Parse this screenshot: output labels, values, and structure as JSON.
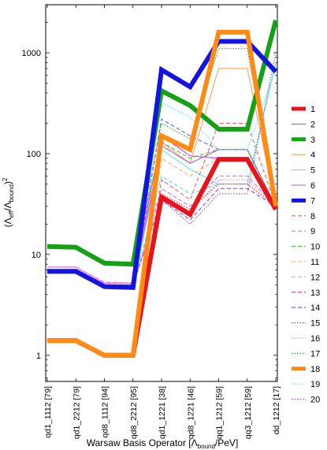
{
  "chart_data": {
    "type": "line",
    "xlabel": "Warsaw Basis Operator [Λbound/PeV]",
    "xlabel_parts": [
      "Warsaw Basis Operator [Λ",
      "bound",
      "/PeV]"
    ],
    "ylabel_parts": [
      "(Λ",
      "eff",
      "/Λ",
      "bound",
      ")",
      "2"
    ],
    "yscale": "log",
    "ylim": [
      0.55,
      3000
    ],
    "yticks": [
      {
        "v": 1,
        "label": "1"
      },
      {
        "v": 10,
        "label": "10"
      },
      {
        "v": 100,
        "label": "100"
      },
      {
        "v": 1000,
        "label": "1000"
      }
    ],
    "categories": [
      "qd1_1112 [79]",
      "qd1_2212 [79]",
      "qd8_1112 [94]",
      "qd8_2212 [95]",
      "qd1_1221 [38]",
      "qd8_1221 [46]",
      "qq1_1212 [59]",
      "qq3_1212 [59]",
      "dd_1212 [17]"
    ],
    "legend_position": "right",
    "series": [
      {
        "name": "1",
        "color": "#e8141b",
        "style": "thick",
        "values": [
          1.4,
          1.4,
          1.0,
          1.0,
          37,
          25,
          88,
          88,
          28
        ]
      },
      {
        "name": "2",
        "color": "#e23de0",
        "style": "solid",
        "values": [
          7.5,
          7.5,
          5.2,
          5.2,
          150,
          95,
          90,
          90,
          30
        ]
      },
      {
        "name": "3",
        "color": "#16a016",
        "style": "thick",
        "values": [
          12,
          11.8,
          8.2,
          8.0,
          420,
          300,
          175,
          175,
          2100
        ]
      },
      {
        "name": "4",
        "color": "#f7a263",
        "style": "solid",
        "values": [
          1.4,
          1.4,
          1.0,
          1.0,
          130,
          80,
          700,
          700,
          30
        ]
      },
      {
        "name": "5",
        "color": "#66e5e5",
        "style": "solid",
        "values": [
          6.5,
          6.5,
          4.6,
          4.6,
          110,
          70,
          50,
          50,
          800
        ]
      },
      {
        "name": "6",
        "color": "#9966cc",
        "style": "solid",
        "values": [
          7.0,
          7.0,
          5.0,
          5.0,
          120,
          80,
          110,
          110,
          30
        ]
      },
      {
        "name": "7",
        "color": "#1414e0",
        "style": "thick",
        "values": [
          6.8,
          6.8,
          4.8,
          4.7,
          680,
          460,
          1300,
          1300,
          650
        ]
      },
      {
        "name": "8",
        "color": "#f06060",
        "style": "dashed",
        "values": [
          1.4,
          1.4,
          1.0,
          1.0,
          55,
          35,
          200,
          200,
          30
        ]
      },
      {
        "name": "9",
        "color": "#e070e0",
        "style": "dashed",
        "values": [
          7.5,
          7.5,
          5.3,
          5.2,
          45,
          30,
          60,
          60,
          30
        ]
      },
      {
        "name": "10",
        "color": "#40c040",
        "style": "dashed",
        "values": [
          12,
          11.8,
          8.2,
          8.0,
          130,
          90,
          110,
          110,
          30
        ]
      },
      {
        "name": "11",
        "color": "#f7b070",
        "style": "dashed",
        "values": [
          1.4,
          1.4,
          1.0,
          1.0,
          90,
          60,
          90,
          90,
          30
        ]
      },
      {
        "name": "12",
        "color": "#60e0e0",
        "style": "dashed",
        "values": [
          6.5,
          6.5,
          4.6,
          4.6,
          60,
          40,
          50,
          50,
          800
        ]
      },
      {
        "name": "13",
        "color": "#aa44aa",
        "style": "dashed",
        "values": [
          7.0,
          7.0,
          5.0,
          5.0,
          35,
          22,
          45,
          45,
          30
        ]
      },
      {
        "name": "14",
        "color": "#6060f0",
        "style": "dashed",
        "values": [
          6.8,
          6.8,
          4.8,
          4.7,
          220,
          150,
          110,
          110,
          30
        ]
      },
      {
        "name": "15",
        "color": "#e83030",
        "style": "dotted",
        "values": [
          1.4,
          1.4,
          1.0,
          1.0,
          40,
          28,
          50,
          50,
          30
        ]
      },
      {
        "name": "16",
        "color": "#f080f0",
        "style": "dotted",
        "values": [
          7.5,
          7.5,
          5.2,
          5.2,
          40,
          26,
          55,
          55,
          30
        ]
      },
      {
        "name": "17",
        "color": "#30b030",
        "style": "dotted",
        "values": [
          12,
          11.8,
          8.2,
          8.0,
          200,
          140,
          1100,
          1100,
          30
        ]
      },
      {
        "name": "18",
        "color": "#ff8a14",
        "style": "thick",
        "values": [
          1.4,
          1.4,
          1.0,
          1.0,
          150,
          110,
          1600,
          1600,
          30
        ]
      },
      {
        "name": "19",
        "color": "#40f0f0",
        "style": "dotted",
        "values": [
          6.5,
          6.5,
          4.6,
          4.6,
          320,
          230,
          110,
          110,
          700
        ]
      },
      {
        "name": "20",
        "color": "#b050c0",
        "style": "dotted",
        "values": [
          7.0,
          7.0,
          5.0,
          5.0,
          35,
          20,
          40,
          40,
          1000
        ]
      }
    ]
  }
}
